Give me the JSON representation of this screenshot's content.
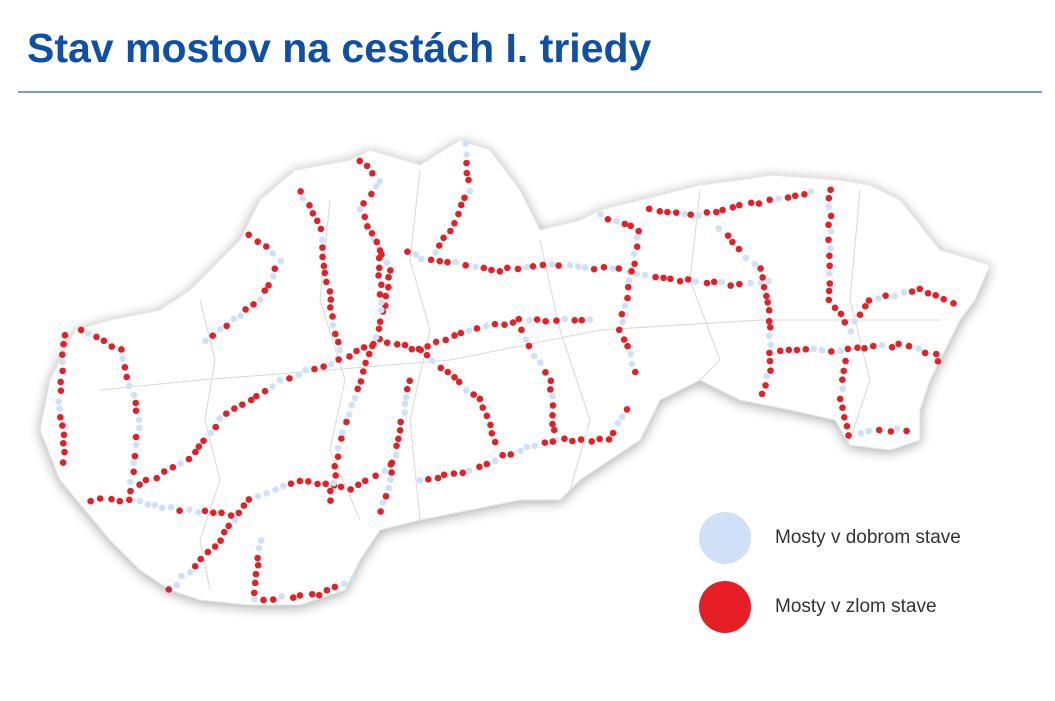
{
  "title": "Stav mostov na cestách I. triedy",
  "legend": [
    {
      "label": "Mosty v dobrom stave",
      "color": "#cfe0f7"
    },
    {
      "label": "Mosty v zlom stave",
      "color": "#e61e25"
    }
  ]
}
